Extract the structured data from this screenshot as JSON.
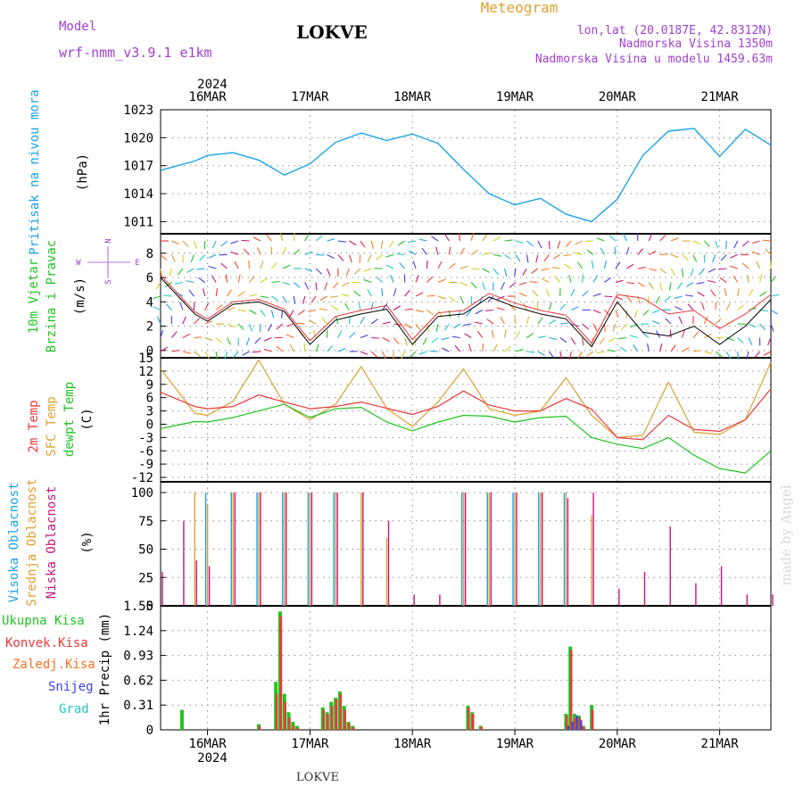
{
  "header": {
    "model_label": "Model",
    "model_name": "wrf-nmm_v3.9.1 e1km",
    "station": "LOKVE",
    "meteogram_label": "Meteogram",
    "lonlat": "lon,lat (20.0187E, 42.8312N)",
    "altitude": "Nadmorska Visina 1350m",
    "model_altitude": "Nadmorska Visina u modelu 1459.63m"
  },
  "footer": {
    "station": "LOKVE",
    "watermark": "made by Angel"
  },
  "time_axis": {
    "year": "2024",
    "day_labels": [
      "16MAR",
      "17MAR",
      "18MAR",
      "19MAR",
      "20MAR",
      "21MAR"
    ],
    "start": "2024-03-15 13:00",
    "end": "2024-03-21 12:00"
  },
  "colors": {
    "pressure": "#1ba3e8",
    "temp2m": "#e8383a",
    "sfc_temp": "#e0a030",
    "dewpt": "#22c322",
    "high_cloud": "#1ba3e8",
    "mid_cloud": "#e0a030",
    "low_cloud": "#c8157a",
    "total_precip": "#22c322",
    "conv_precip": "#e8383a",
    "frozen_precip": "#ff7020",
    "snow": "#4040e8",
    "graupel": "#20c8c8",
    "wind_label": "#22c322",
    "direction_legend": "#a040d0"
  },
  "panels": {
    "pressure": {
      "ylabel_1": "Pritisak na nivou mora",
      "unit": "(hPa)",
      "ticks": [
        "1011",
        "1014",
        "1017",
        "1020",
        "1023"
      ]
    },
    "wind": {
      "ylabel_1": "10m Vjetar",
      "ylabel_2": "Brzina i Pravac",
      "unit": "(m/s)",
      "ticks": [
        "0",
        "2",
        "4",
        "6",
        "8"
      ],
      "legend": {
        "n": "N",
        "w": "W",
        "e": "E",
        "s": "S"
      }
    },
    "temp": {
      "ylabel_1": "2m Temp",
      "ylabel_2": "SFC Temp",
      "ylabel_3": "dewpt Temp",
      "unit": "(C)",
      "ticks": [
        "-12",
        "-9",
        "-6",
        "-3",
        "0",
        "3",
        "6",
        "9",
        "12",
        "15"
      ]
    },
    "cloud": {
      "ylabel_1": "Visoka Oblacnost",
      "ylabel_2": "Srednja Oblacnost",
      "ylabel_3": "Niska Oblacnost",
      "unit": "(%)",
      "ticks": [
        "0",
        "25",
        "50",
        "75",
        "100"
      ]
    },
    "precip": {
      "ylabel": "1hr Precip (mm)",
      "ticks": [
        "0",
        "0.31",
        "0.62",
        "0.93",
        "1.24",
        "1.55"
      ],
      "legend": [
        "Ukupna Kisa",
        "Konvek.Kisa",
        "Zaledj.Kisa",
        "Snijeg",
        "Grad"
      ]
    }
  },
  "chart_data": [
    {
      "type": "line",
      "title": "Pritisak na nivou mora",
      "ylabel": "(hPa)",
      "ylim": [
        1009.7,
        1023
      ],
      "x": [
        "15MAR 13",
        "15MAR 21",
        "16MAR 00",
        "16MAR 06",
        "16MAR 12",
        "16MAR 18",
        "17MAR 00",
        "17MAR 06",
        "17MAR 12",
        "17MAR 18",
        "18MAR 00",
        "18MAR 06",
        "18MAR 12",
        "18MAR 18",
        "19MAR 00",
        "19MAR 06",
        "19MAR 12",
        "19MAR 18",
        "20MAR 00",
        "20MAR 06",
        "20MAR 12",
        "20MAR 18",
        "21MAR 00",
        "21MAR 06",
        "21MAR 12"
      ],
      "series": [
        {
          "values": [
            1016.5,
            1017.5,
            1018.1,
            1018.4,
            1017.6,
            1016.0,
            1017.2,
            1019.5,
            1020.5,
            1019.7,
            1020.4,
            1019.4,
            1016.6,
            1014.0,
            1012.8,
            1013.5,
            1011.8,
            1011.0,
            1013.4,
            1018.1,
            1020.7,
            1021.0,
            1018.0,
            1020.9,
            1019.2
          ]
        }
      ]
    },
    {
      "type": "line",
      "title": "10m Vjetar Brzina i Pravac",
      "ylabel": "(m/s)",
      "ylim": [
        -0.6,
        9.6
      ],
      "x": [
        "15MAR 13",
        "15MAR 21",
        "16MAR 00",
        "16MAR 06",
        "16MAR 12",
        "16MAR 18",
        "17MAR 00",
        "17MAR 06",
        "17MAR 12",
        "17MAR 18",
        "18MAR 00",
        "18MAR 06",
        "18MAR 12",
        "18MAR 18",
        "19MAR 00",
        "19MAR 06",
        "19MAR 12",
        "19MAR 18",
        "20MAR 00",
        "20MAR 06",
        "20MAR 12",
        "20MAR 18",
        "21MAR 00",
        "21MAR 06",
        "21MAR 12"
      ],
      "series": [
        {
          "values": [
            6.0,
            3.0,
            2.4,
            3.8,
            4.0,
            3.2,
            0.5,
            2.5,
            3.0,
            3.4,
            0.5,
            2.8,
            3.0,
            4.4,
            3.6,
            3.0,
            2.6,
            0.3,
            4.0,
            1.5,
            1.2,
            2.0,
            0.5,
            2.0,
            4.2
          ]
        },
        {
          "values": [
            6.2,
            3.2,
            2.6,
            4.0,
            4.2,
            3.4,
            0.8,
            2.8,
            3.3,
            3.7,
            0.9,
            3.1,
            3.3,
            4.7,
            3.9,
            3.3,
            2.9,
            0.6,
            4.6,
            4.3,
            3.0,
            3.3,
            1.8,
            3.0,
            4.6
          ]
        }
      ]
    },
    {
      "type": "line",
      "title": "Temperature",
      "ylabel": "(C)",
      "ylim": [
        -13,
        15
      ],
      "x": [
        "15MAR 13",
        "15MAR 21",
        "16MAR 00",
        "16MAR 06",
        "16MAR 12",
        "16MAR 18",
        "17MAR 00",
        "17MAR 06",
        "17MAR 12",
        "17MAR 18",
        "18MAR 00",
        "18MAR 06",
        "18MAR 12",
        "18MAR 18",
        "19MAR 00",
        "19MAR 06",
        "19MAR 12",
        "19MAR 18",
        "20MAR 00",
        "20MAR 06",
        "20MAR 12",
        "20MAR 18",
        "21MAR 00",
        "21MAR 06",
        "21MAR 12"
      ],
      "series": [
        {
          "name": "2m Temp",
          "values": [
            7.2,
            4.0,
            3.5,
            4.0,
            6.6,
            5.0,
            3.5,
            4.0,
            5.0,
            3.6,
            2.2,
            4.0,
            7.5,
            4.3,
            3.0,
            3.0,
            5.8,
            3.4,
            -3.0,
            -3.5,
            2.0,
            -1.2,
            -1.6,
            1.0,
            8.0
          ]
        },
        {
          "name": "SFC Temp",
          "values": [
            12.5,
            2.5,
            2.0,
            5.2,
            14.5,
            4.5,
            1.0,
            4.5,
            13.0,
            3.6,
            -0.5,
            5.0,
            12.5,
            3.5,
            2.0,
            3.0,
            10.5,
            2.0,
            -3.0,
            -2.5,
            9.5,
            -1.8,
            -2.3,
            1.0,
            14.0
          ]
        },
        {
          "name": "dewpt Temp",
          "values": [
            -1.0,
            0.6,
            0.5,
            1.5,
            3.0,
            4.5,
            1.5,
            3.5,
            3.8,
            0.5,
            -1.5,
            0.5,
            2.0,
            1.8,
            0.5,
            1.5,
            1.8,
            -3.0,
            -4.5,
            -5.5,
            -3.0,
            -7.0,
            -10.0,
            -11.0,
            -6.0
          ]
        }
      ]
    },
    {
      "type": "bar",
      "title": "Oblacnost",
      "ylabel": "(%)",
      "ylim": [
        0,
        100
      ],
      "categories": [
        "15MAR 13",
        "15MAR 18",
        "15MAR 21",
        "16MAR 00",
        "16MAR 06",
        "16MAR 12",
        "16MAR 18",
        "17MAR 00",
        "17MAR 06",
        "17MAR 12",
        "17MAR 18",
        "18MAR 00",
        "18MAR 06",
        "18MAR 12",
        "18MAR 18",
        "19MAR 00",
        "19MAR 06",
        "19MAR 12",
        "19MAR 18",
        "20MAR 00",
        "20MAR 06",
        "20MAR 12",
        "20MAR 18",
        "21MAR 00",
        "21MAR 06",
        "21MAR 12"
      ],
      "series": [
        {
          "name": "Visoka Oblacnost",
          "values": [
            0,
            0,
            0,
            100,
            100,
            100,
            100,
            100,
            100,
            0,
            0,
            0,
            0,
            100,
            100,
            100,
            100,
            100,
            0,
            0,
            0,
            0,
            0,
            0,
            0,
            0
          ]
        },
        {
          "name": "Srednja Oblacnost",
          "values": [
            0,
            0,
            100,
            90,
            100,
            100,
            100,
            100,
            100,
            100,
            60,
            0,
            0,
            100,
            100,
            100,
            100,
            100,
            80,
            0,
            0,
            0,
            0,
            0,
            0,
            0
          ]
        },
        {
          "name": "Niska Oblacnost",
          "values": [
            30,
            75,
            40,
            35,
            100,
            100,
            100,
            100,
            100,
            100,
            75,
            10,
            10,
            100,
            100,
            100,
            100,
            95,
            100,
            15,
            30,
            70,
            20,
            35,
            10,
            10
          ]
        }
      ]
    },
    {
      "type": "bar",
      "title": "1hr Precip",
      "ylabel": "(mm)",
      "ylim": [
        0,
        1.55
      ],
      "categories": [
        "15MAR 18",
        "16MAR 12",
        "16MAR 16",
        "16MAR 17",
        "16MAR 18",
        "16MAR 19",
        "16MAR 20",
        "16MAR 21",
        "17MAR 03",
        "17MAR 04",
        "17MAR 05",
        "17MAR 06",
        "17MAR 07",
        "17MAR 08",
        "17MAR 09",
        "17MAR 10",
        "18MAR 13",
        "18MAR 14",
        "18MAR 16",
        "19MAR 12",
        "19MAR 13",
        "19MAR 14",
        "19MAR 15",
        "19MAR 16",
        "19MAR 18"
      ],
      "series": [
        {
          "name": "Ukupna Kisa",
          "values": [
            0.25,
            0.07,
            0.6,
            1.48,
            0.45,
            0.22,
            0.1,
            0.05,
            0.28,
            0.22,
            0.35,
            0.4,
            0.48,
            0.3,
            0.1,
            0.05,
            0.3,
            0.22,
            0.05,
            0.2,
            1.04,
            0.2,
            0.18,
            0.05,
            0.31
          ]
        },
        {
          "name": "Konvek.Kisa",
          "values": [
            0,
            0.05,
            0.45,
            1.42,
            0.35,
            0.15,
            0.05,
            0.02,
            0.25,
            0.2,
            0.3,
            0.38,
            0.45,
            0.25,
            0.08,
            0.03,
            0.28,
            0.2,
            0.04,
            0.18,
            1.0,
            0.15,
            0.15,
            0.04,
            0.25
          ]
        },
        {
          "name": "Zaledj.Kisa",
          "values": [
            0,
            0,
            0,
            0,
            0,
            0,
            0,
            0,
            0,
            0,
            0,
            0,
            0,
            0,
            0,
            0,
            0,
            0,
            0,
            0,
            0,
            0,
            0,
            0,
            0
          ]
        },
        {
          "name": "Snijeg",
          "values": [
            0,
            0,
            0,
            0,
            0,
            0,
            0,
            0,
            0,
            0,
            0,
            0,
            0,
            0,
            0,
            0,
            0,
            0,
            0,
            0,
            0.05,
            0.1,
            0.18,
            0.12,
            0
          ]
        },
        {
          "name": "Grad",
          "values": [
            0,
            0,
            0,
            0,
            0,
            0,
            0,
            0,
            0,
            0,
            0,
            0,
            0,
            0,
            0,
            0,
            0,
            0,
            0,
            0,
            0,
            0,
            0,
            0,
            0
          ]
        }
      ]
    }
  ]
}
